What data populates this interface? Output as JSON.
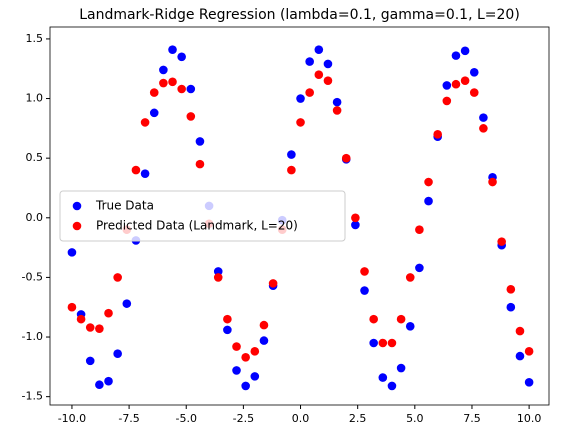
{
  "chart_data": {
    "type": "scatter",
    "title": "Landmark-Ridge Regression (lambda=0.1, gamma=0.1, L=20)",
    "x": [
      -10.0,
      -9.6,
      -9.2,
      -8.8,
      -8.4,
      -8.0,
      -7.6,
      -7.2,
      -6.8,
      -6.4,
      -6.0,
      -5.6,
      -5.2,
      -4.8,
      -4.4,
      -4.0,
      -3.6,
      -3.2,
      -2.8,
      -2.4,
      -2.0,
      -1.6,
      -1.2,
      -0.8,
      -0.4,
      0.0,
      0.4,
      0.8,
      1.2,
      1.6,
      2.0,
      2.4,
      2.8,
      3.2,
      3.6,
      4.0,
      4.4,
      4.8,
      5.2,
      5.6,
      6.0,
      6.4,
      6.8,
      7.2,
      7.6,
      8.0,
      8.4,
      8.8,
      9.2,
      9.6,
      10.0
    ],
    "series": [
      {
        "name": "True Data",
        "color": "#0000ff",
        "values": [
          -0.29,
          -0.81,
          -1.2,
          -1.4,
          -1.37,
          -1.14,
          -0.72,
          -0.19,
          0.37,
          0.88,
          1.24,
          1.41,
          1.35,
          1.08,
          0.64,
          0.1,
          -0.45,
          -0.94,
          -1.28,
          -1.41,
          -1.33,
          -1.03,
          -0.57,
          -0.02,
          0.53,
          1.0,
          1.31,
          1.41,
          1.29,
          0.97,
          0.49,
          -0.06,
          -0.61,
          -1.05,
          -1.34,
          -1.41,
          -1.26,
          -0.91,
          -0.42,
          0.14,
          0.68,
          1.11,
          1.36,
          1.4,
          1.22,
          0.84,
          0.34,
          -0.23,
          -0.75,
          -1.16,
          -1.38
        ]
      },
      {
        "name": "Predicted Data (Landmark, L=20)",
        "color": "#ff0000",
        "values": [
          -0.75,
          -0.85,
          -0.92,
          -0.93,
          -0.8,
          -0.5,
          -0.1,
          0.4,
          0.8,
          1.05,
          1.13,
          1.14,
          1.08,
          0.85,
          0.45,
          -0.05,
          -0.5,
          -0.85,
          -1.08,
          -1.17,
          -1.12,
          -0.9,
          -0.55,
          -0.1,
          0.4,
          0.8,
          1.05,
          1.2,
          1.15,
          0.9,
          0.5,
          0.0,
          -0.45,
          -0.85,
          -1.05,
          -1.05,
          -0.85,
          -0.5,
          -0.1,
          0.3,
          0.7,
          0.98,
          1.12,
          1.15,
          1.05,
          0.75,
          0.3,
          -0.2,
          -0.6,
          -0.95,
          -1.12
        ]
      }
    ],
    "xlim": [
      -10.96,
      10.87
    ],
    "ylim": [
      -1.57,
      1.6
    ],
    "xticks": [
      {
        "value": -10,
        "label": "-10.0"
      },
      -7.5,
      {
        "value": -5,
        "label": "-5.0"
      },
      -2.5,
      {
        "value": 0,
        "label": "0.0"
      },
      2.5,
      {
        "value": 5,
        "label": "5.0"
      },
      7.5,
      {
        "value": 10,
        "label": "10.0"
      }
    ],
    "yticks": [
      -1.5,
      {
        "value": -1,
        "label": "-1.0"
      },
      -0.5,
      {
        "value": 0,
        "label": "0.0"
      },
      0.5,
      {
        "value": 1,
        "label": "1.0"
      },
      1.5
    ],
    "legend": "center left"
  }
}
